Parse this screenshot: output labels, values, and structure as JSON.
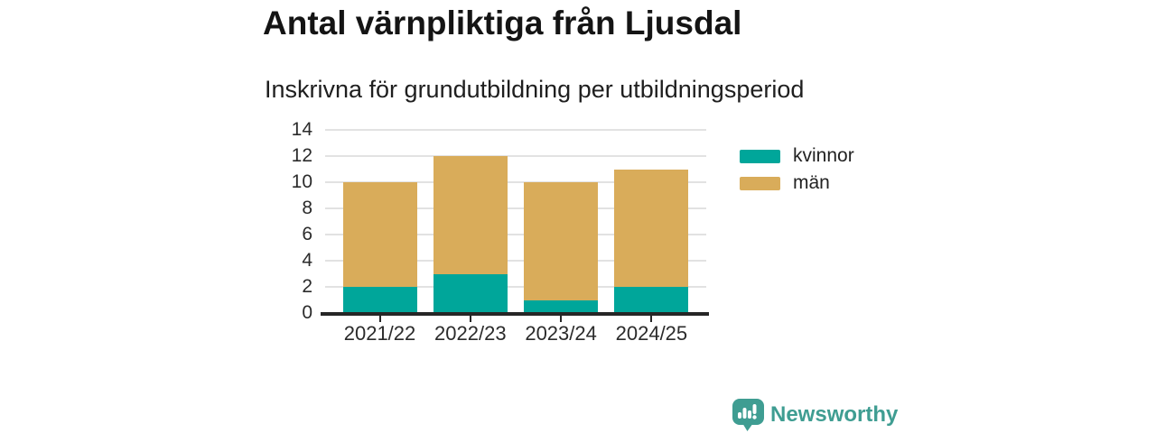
{
  "title": "Antal värnpliktiga från Ljusdal",
  "subtitle": "Inskrivna för grundutbildning per utbildningsperiod",
  "colors": {
    "background": "#FFFFFF",
    "kvinnor": "#00A69A",
    "man": "#D9AC5A",
    "gridline": "#E2E2E2",
    "axis": "#262626",
    "text": "#1F1F1F",
    "brand_teal": "#3F9D92"
  },
  "chart_data": {
    "type": "bar",
    "stacked": true,
    "title": "Antal värnpliktiga från Ljusdal",
    "subtitle": "Inskrivna för grundutbildning per utbildningsperiod",
    "categories": [
      "2021/22",
      "2022/23",
      "2023/24",
      "2024/25"
    ],
    "series": [
      {
        "name": "kvinnor",
        "color": "#00A69A",
        "values": [
          2,
          3,
          1,
          2
        ]
      },
      {
        "name": "män",
        "color": "#D9AC5A",
        "values": [
          8,
          9,
          9,
          9
        ]
      }
    ],
    "stack_totals": [
      10,
      12,
      10,
      11
    ],
    "xlabel": "",
    "ylabel": "",
    "ylim": [
      0,
      14
    ],
    "yticks": [
      0,
      2,
      4,
      6,
      8,
      10,
      12,
      14
    ],
    "grid": true,
    "legend_position": "right"
  },
  "legend": {
    "items": [
      {
        "label": "kvinnor"
      },
      {
        "label": "män"
      }
    ]
  },
  "footer": {
    "brand": "Newsworthy"
  }
}
